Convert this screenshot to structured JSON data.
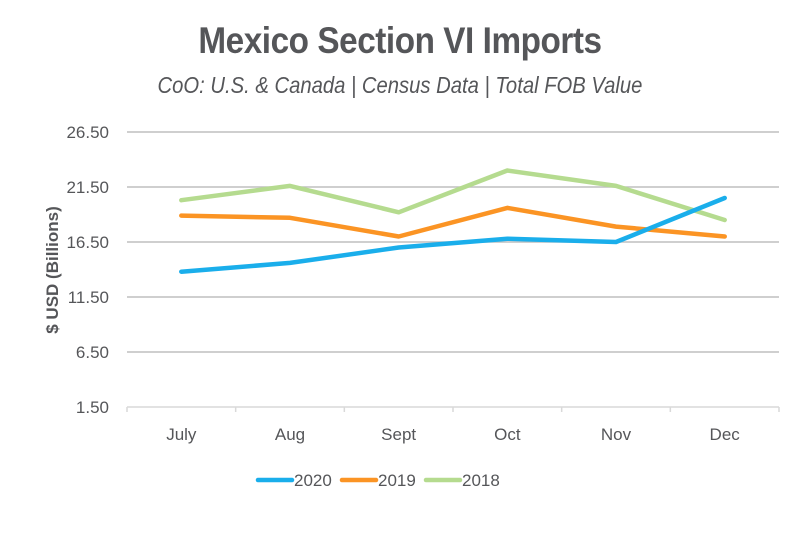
{
  "chart_data": {
    "type": "line",
    "title": "Mexico Section VI Imports",
    "subtitle": "CoO: U.S. & Canada | Census Data | Total FOB Value",
    "xlabel": "",
    "ylabel": "$ USD (Billions)",
    "categories": [
      "July",
      "Aug",
      "Sept",
      "Oct",
      "Nov",
      "Dec"
    ],
    "yticks": [
      "26.50",
      "21.50",
      "16.50",
      "11.50",
      "6.50",
      "1.50"
    ],
    "ylim": [
      1.5,
      26.5
    ],
    "grid": true,
    "legend_position": "bottom",
    "series": [
      {
        "name": "2020",
        "color": "#1aaeeb",
        "values": [
          13.8,
          14.6,
          16.0,
          16.8,
          16.5,
          20.5
        ]
      },
      {
        "name": "2019",
        "color": "#fb9424",
        "values": [
          18.9,
          18.7,
          17.0,
          19.6,
          17.9,
          17.0
        ]
      },
      {
        "name": "2018",
        "color": "#b5db8f",
        "values": [
          20.3,
          21.6,
          19.2,
          23.0,
          21.6,
          18.5
        ]
      }
    ]
  },
  "colors": {
    "text": "#555659",
    "grid": "#bfbfbf"
  }
}
